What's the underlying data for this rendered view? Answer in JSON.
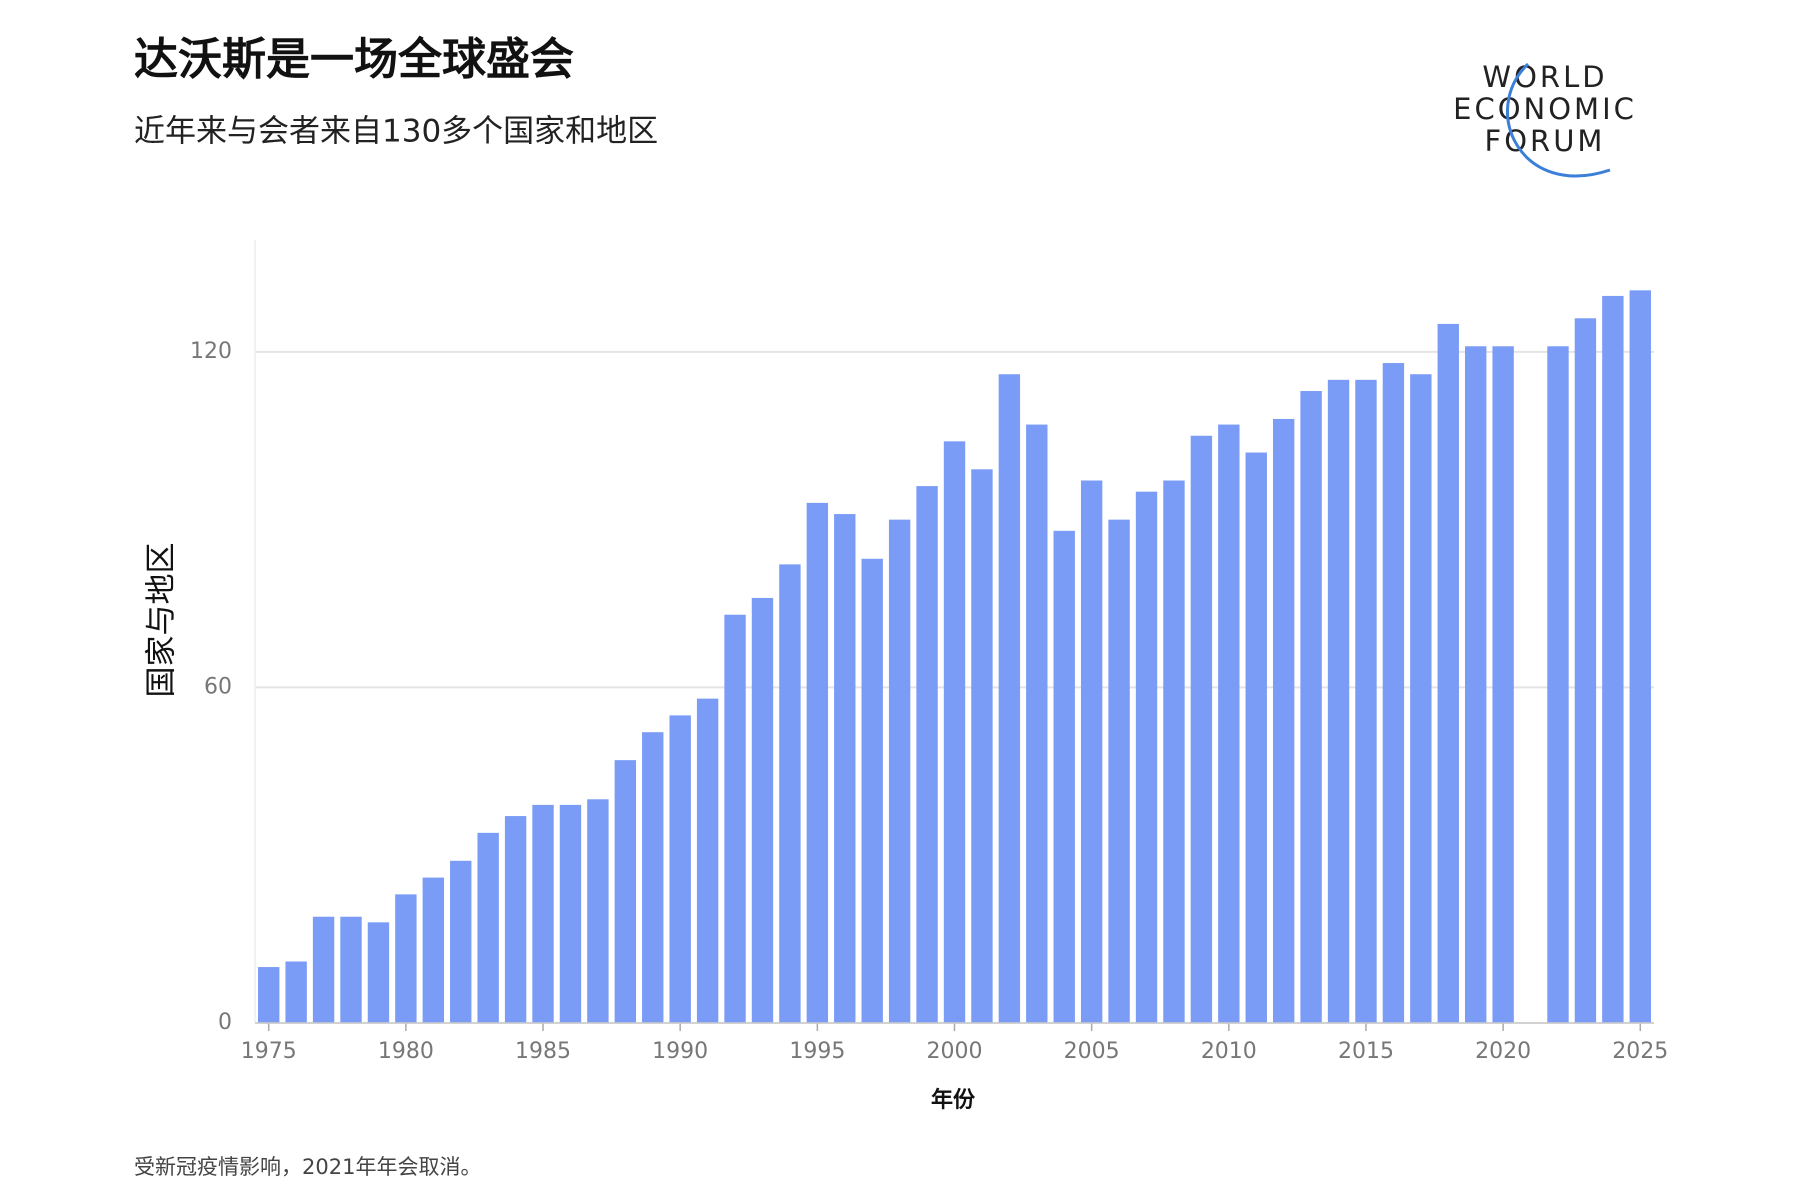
{
  "chart_data": {
    "type": "bar",
    "title": "达沃斯是一场全球盛会",
    "subtitle": "近年来与会者来自130多个国家和地区",
    "x_label": "年份",
    "y_label": "国家与地区",
    "note": "受新冠疫情影响，2021年年会取消。",
    "logo": [
      "WORLD",
      "ECONOMIC",
      "FORUM"
    ],
    "color": "#7b9cf6",
    "grid": true,
    "x": [
      1975,
      1976,
      1977,
      1978,
      1979,
      1980,
      1981,
      1982,
      1983,
      1984,
      1985,
      1986,
      1987,
      1988,
      1989,
      1990,
      1991,
      1992,
      1993,
      1994,
      1995,
      1996,
      1997,
      1998,
      1999,
      2000,
      2001,
      2002,
      2003,
      2004,
      2005,
      2006,
      2007,
      2008,
      2009,
      2010,
      2011,
      2012,
      2013,
      2014,
      2015,
      2016,
      2017,
      2018,
      2019,
      2020,
      2021,
      2022,
      2023,
      2024,
      2025
    ],
    "values": [
      10,
      11,
      19,
      19,
      18,
      23,
      26,
      29,
      34,
      37,
      39,
      39,
      40,
      47,
      52,
      55,
      58,
      73,
      76,
      82,
      93,
      91,
      83,
      90,
      96,
      104,
      99,
      116,
      107,
      88,
      97,
      90,
      95,
      97,
      105,
      107,
      102,
      108,
      113,
      115,
      115,
      118,
      116,
      125,
      121,
      121,
      null,
      121,
      126,
      130,
      131
    ],
    "xlim": [
      1974.5,
      2025.5
    ],
    "xticks": [
      1975,
      1980,
      1985,
      1990,
      1995,
      2000,
      2005,
      2010,
      2015,
      2020,
      2025
    ],
    "ylim": [
      0,
      140
    ],
    "yticks": [
      0,
      60,
      120
    ]
  }
}
